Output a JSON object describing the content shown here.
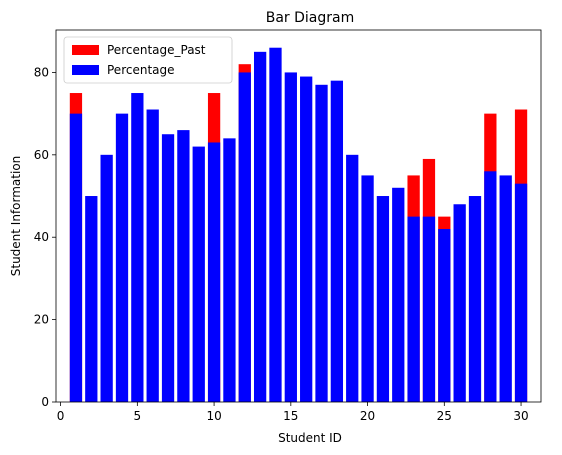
{
  "chart_data": {
    "type": "bar",
    "title": "Bar Diagram",
    "xlabel": "Student ID",
    "ylabel": "Student Information",
    "x": [
      1,
      2,
      3,
      4,
      5,
      6,
      7,
      8,
      9,
      10,
      11,
      12,
      13,
      14,
      15,
      16,
      17,
      18,
      19,
      20,
      21,
      22,
      23,
      24,
      25,
      26,
      27,
      28,
      29,
      30
    ],
    "xlim": [
      -0.3,
      31.3
    ],
    "ylim": [
      0,
      90.3
    ],
    "xticks": [
      0,
      5,
      10,
      15,
      20,
      25,
      30
    ],
    "yticks": [
      0,
      20,
      40,
      60,
      80
    ],
    "grid": false,
    "legend_position": "top-left",
    "series": [
      {
        "name": "Percentage_Past",
        "color": "#ff0000",
        "values": [
          75,
          0,
          0,
          0,
          0,
          0,
          0,
          0,
          0,
          75,
          0,
          82,
          0,
          0,
          0,
          0,
          0,
          0,
          0,
          0,
          0,
          0,
          55,
          59,
          45,
          0,
          0,
          70,
          0,
          71
        ]
      },
      {
        "name": "Percentage",
        "color": "#0000ff",
        "values": [
          70,
          50,
          60,
          70,
          75,
          71,
          65,
          66,
          62,
          63,
          64,
          80,
          85,
          86,
          80,
          79,
          77,
          78,
          60,
          55,
          50,
          52,
          45,
          45,
          42,
          48,
          50,
          56,
          55,
          53
        ]
      }
    ]
  }
}
